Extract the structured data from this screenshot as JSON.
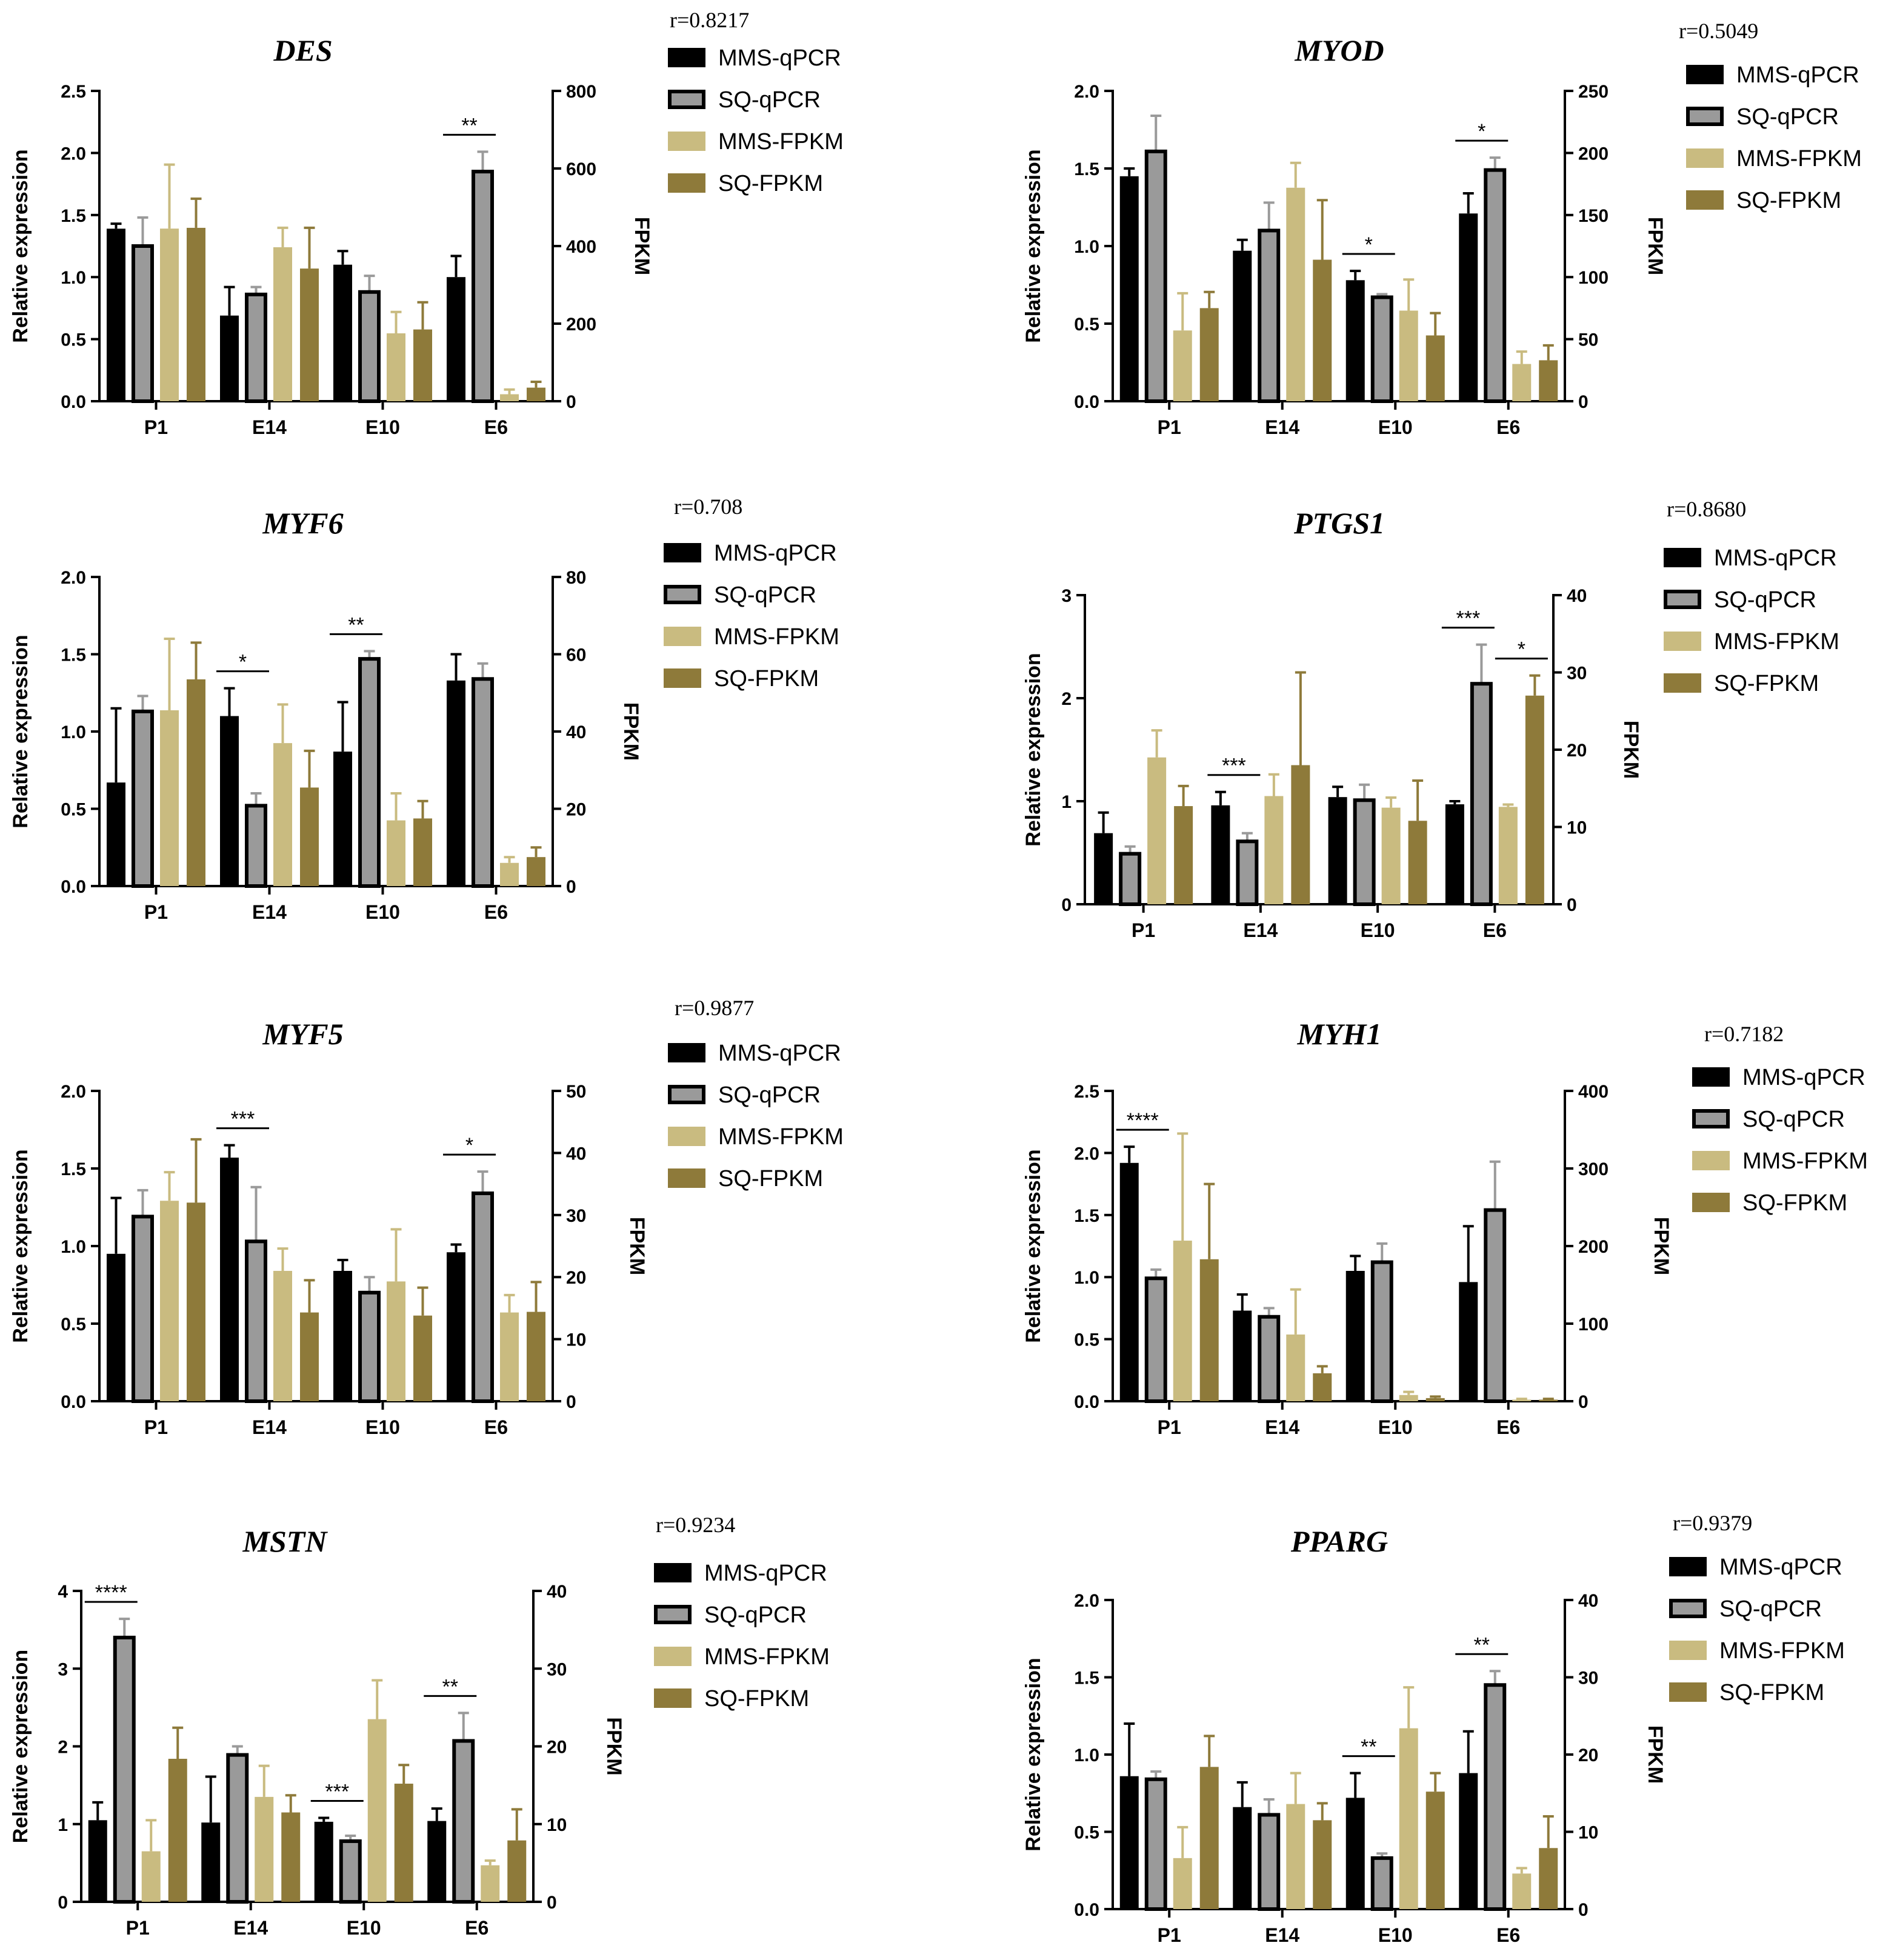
{
  "colors": {
    "MMS-qPCR": "#000000",
    "SQ-qPCR": "#9a9a9a",
    "MMS-FPKM": "#c9bb80",
    "SQ-FPKM": "#8e7a3a"
  },
  "legend": [
    "MMS-qPCR",
    "SQ-qPCR",
    "MMS-FPKM",
    "SQ-FPKM"
  ],
  "chart_data": [
    {
      "type": "bar",
      "title": "DES",
      "r": "r=0.8217",
      "ylabel": "Relative expression",
      "y2label": "FPKM",
      "categories": [
        "P1",
        "E14",
        "E10",
        "E6"
      ],
      "ylim": [
        0,
        2.5
      ],
      "yticks": [
        "0.0",
        "0.5",
        "1.0",
        "1.5",
        "2.0",
        "2.5"
      ],
      "y2lim": [
        0,
        800
      ],
      "y2ticks": [
        "0",
        "200",
        "400",
        "600",
        "800"
      ],
      "series": [
        {
          "name": "MMS-qPCR",
          "axis": "left",
          "values": [
            1.39,
            0.69,
            1.1,
            1.0
          ],
          "errors": [
            0.04,
            0.23,
            0.11,
            0.17
          ]
        },
        {
          "name": "SQ-qPCR",
          "axis": "left",
          "values": [
            1.25,
            0.86,
            0.88,
            1.85
          ],
          "errors": [
            0.23,
            0.06,
            0.13,
            0.16
          ]
        },
        {
          "name": "MMS-FPKM",
          "axis": "right",
          "values": [
            445,
            397,
            175,
            18
          ],
          "errors": [
            165,
            50,
            55,
            12
          ]
        },
        {
          "name": "SQ-FPKM",
          "axis": "right",
          "values": [
            447,
            342,
            185,
            35
          ],
          "errors": [
            75,
            105,
            70,
            15
          ]
        }
      ],
      "significance": [
        {
          "group": 3,
          "from": 0,
          "to": 1,
          "label": "**"
        }
      ]
    },
    {
      "type": "bar",
      "title": "MYOD",
      "r": "r=0.5049",
      "ylabel": "Relative expression",
      "y2label": "FPKM",
      "categories": [
        "P1",
        "E14",
        "E10",
        "E6"
      ],
      "ylim": [
        0,
        2.0
      ],
      "yticks": [
        "0.0",
        "0.5",
        "1.0",
        "1.5",
        "2.0"
      ],
      "y2lim": [
        0,
        250
      ],
      "y2ticks": [
        "0",
        "50",
        "100",
        "150",
        "200",
        "250"
      ],
      "series": [
        {
          "name": "MMS-qPCR",
          "axis": "left",
          "values": [
            1.45,
            0.97,
            0.78,
            1.21
          ],
          "errors": [
            0.05,
            0.07,
            0.06,
            0.13
          ]
        },
        {
          "name": "SQ-qPCR",
          "axis": "left",
          "values": [
            1.61,
            1.1,
            0.67,
            1.49
          ],
          "errors": [
            0.23,
            0.18,
            0.02,
            0.08
          ]
        },
        {
          "name": "MMS-FPKM",
          "axis": "right",
          "values": [
            57,
            172,
            73,
            30
          ],
          "errors": [
            30,
            20,
            25,
            10
          ]
        },
        {
          "name": "SQ-FPKM",
          "axis": "right",
          "values": [
            75,
            114,
            53,
            33
          ],
          "errors": [
            13,
            48,
            18,
            12
          ]
        }
      ],
      "significance": [
        {
          "group": 2,
          "from": 0,
          "to": 1,
          "label": "*"
        },
        {
          "group": 3,
          "from": 0,
          "to": 1,
          "label": "*"
        }
      ]
    },
    {
      "type": "bar",
      "title": "MYF6",
      "r": "r=0.708",
      "ylabel": "Relative expression",
      "y2label": "FPKM",
      "categories": [
        "P1",
        "E14",
        "E10",
        "E6"
      ],
      "ylim": [
        0,
        2.0
      ],
      "yticks": [
        "0.0",
        "0.5",
        "1.0",
        "1.5",
        "2.0"
      ],
      "y2lim": [
        0,
        80
      ],
      "y2ticks": [
        "0",
        "20",
        "40",
        "60",
        "80"
      ],
      "series": [
        {
          "name": "MMS-qPCR",
          "axis": "left",
          "values": [
            0.67,
            1.1,
            0.87,
            1.33
          ],
          "errors": [
            0.48,
            0.18,
            0.32,
            0.17
          ]
        },
        {
          "name": "SQ-qPCR",
          "axis": "left",
          "values": [
            1.13,
            0.52,
            1.47,
            1.34
          ],
          "errors": [
            0.1,
            0.08,
            0.05,
            0.1
          ]
        },
        {
          "name": "MMS-FPKM",
          "axis": "right",
          "values": [
            45.5,
            37,
            17,
            6
          ],
          "errors": [
            18.5,
            10,
            7,
            1.5
          ]
        },
        {
          "name": "SQ-FPKM",
          "axis": "right",
          "values": [
            53.5,
            25.5,
            17.5,
            7.5
          ],
          "errors": [
            9.5,
            9.5,
            4.5,
            2.5
          ]
        }
      ],
      "significance": [
        {
          "group": 1,
          "from": 0,
          "to": 1,
          "label": "*"
        },
        {
          "group": 2,
          "from": 0,
          "to": 1,
          "label": "**"
        }
      ]
    },
    {
      "type": "bar",
      "title": "PTGS1",
      "r": "r=0.8680",
      "ylabel": "Relative expression",
      "y2label": "FPKM",
      "categories": [
        "P1",
        "E14",
        "E10",
        "E6"
      ],
      "ylim": [
        0,
        3
      ],
      "yticks": [
        "0",
        "1",
        "2",
        "3"
      ],
      "y2lim": [
        0,
        40
      ],
      "y2ticks": [
        "0",
        "10",
        "20",
        "30",
        "40"
      ],
      "series": [
        {
          "name": "MMS-qPCR",
          "axis": "left",
          "values": [
            0.69,
            0.96,
            1.04,
            0.97
          ],
          "errors": [
            0.2,
            0.13,
            0.1,
            0.03
          ]
        },
        {
          "name": "SQ-qPCR",
          "axis": "left",
          "values": [
            0.49,
            0.61,
            1.01,
            2.14
          ],
          "errors": [
            0.07,
            0.08,
            0.15,
            0.38
          ]
        },
        {
          "name": "MMS-FPKM",
          "axis": "right",
          "values": [
            19,
            14,
            12.5,
            12.6
          ],
          "errors": [
            3.5,
            2.8,
            1.3,
            0.3
          ]
        },
        {
          "name": "SQ-FPKM",
          "axis": "right",
          "values": [
            12.7,
            18,
            10.8,
            27
          ],
          "errors": [
            2.6,
            12,
            5.2,
            2.6
          ]
        }
      ],
      "significance": [
        {
          "group": 1,
          "from": 0,
          "to": 1,
          "label": "***"
        },
        {
          "group": 3,
          "from": 0,
          "to": 1,
          "label": "***"
        },
        {
          "group": 3,
          "from": 2,
          "to": 3,
          "label": "*"
        }
      ]
    },
    {
      "type": "bar",
      "title": "MYF5",
      "r": "r=0.9877",
      "ylabel": "Relative expression",
      "y2label": "FPKM",
      "categories": [
        "P1",
        "E14",
        "E10",
        "E6"
      ],
      "ylim": [
        0,
        2.0
      ],
      "yticks": [
        "0.0",
        "0.5",
        "1.0",
        "1.5",
        "2.0"
      ],
      "y2lim": [
        0,
        50
      ],
      "y2ticks": [
        "0",
        "10",
        "20",
        "30",
        "40",
        "50"
      ],
      "series": [
        {
          "name": "MMS-qPCR",
          "axis": "left",
          "values": [
            0.95,
            1.57,
            0.84,
            0.96
          ],
          "errors": [
            0.36,
            0.08,
            0.07,
            0.05
          ]
        },
        {
          "name": "SQ-qPCR",
          "axis": "left",
          "values": [
            1.19,
            1.03,
            0.7,
            1.34
          ],
          "errors": [
            0.17,
            0.35,
            0.1,
            0.14
          ]
        },
        {
          "name": "MMS-FPKM",
          "axis": "right",
          "values": [
            32.3,
            21,
            19.3,
            14.3
          ],
          "errors": [
            4.6,
            3.6,
            8.4,
            2.8
          ]
        },
        {
          "name": "SQ-FPKM",
          "axis": "right",
          "values": [
            32,
            14.3,
            13.8,
            14.4
          ],
          "errors": [
            10.2,
            5.2,
            4.5,
            4.8
          ]
        }
      ],
      "significance": [
        {
          "group": 1,
          "from": 0,
          "to": 1,
          "label": "***"
        },
        {
          "group": 3,
          "from": 0,
          "to": 1,
          "label": "*"
        }
      ]
    },
    {
      "type": "bar",
      "title": "MYH1",
      "r": "r=0.7182",
      "ylabel": "Relative expression",
      "y2label": "FPKM",
      "categories": [
        "P1",
        "E14",
        "E10",
        "E6"
      ],
      "ylim": [
        0,
        2.5
      ],
      "yticks": [
        "0.0",
        "0.5",
        "1.0",
        "1.5",
        "2.0",
        "2.5"
      ],
      "y2lim": [
        0,
        400
      ],
      "y2ticks": [
        "0",
        "100",
        "200",
        "300",
        "400"
      ],
      "series": [
        {
          "name": "MMS-qPCR",
          "axis": "left",
          "values": [
            1.92,
            0.73,
            1.05,
            0.96
          ],
          "errors": [
            0.13,
            0.13,
            0.12,
            0.45
          ]
        },
        {
          "name": "SQ-qPCR",
          "axis": "left",
          "values": [
            0.99,
            0.68,
            1.12,
            1.54
          ],
          "errors": [
            0.07,
            0.07,
            0.15,
            0.39
          ]
        },
        {
          "name": "MMS-FPKM",
          "axis": "right",
          "values": [
            207,
            86,
            8,
            2
          ],
          "errors": [
            138,
            58,
            4,
            1
          ]
        },
        {
          "name": "SQ-FPKM",
          "axis": "right",
          "values": [
            183,
            36,
            4,
            2
          ],
          "errors": [
            97,
            9,
            2,
            1
          ]
        }
      ],
      "significance": [
        {
          "group": 0,
          "from": 0,
          "to": 1,
          "label": "****"
        }
      ]
    },
    {
      "type": "bar",
      "title": "MSTN",
      "r": "r=0.9234",
      "ylabel": "Relative expression",
      "y2label": "FPKM",
      "categories": [
        "P1",
        "E14",
        "E10",
        "E6"
      ],
      "ylim": [
        0,
        4
      ],
      "yticks": [
        "0",
        "1",
        "2",
        "3",
        "4"
      ],
      "y2lim": [
        0,
        40
      ],
      "y2ticks": [
        "0",
        "10",
        "20",
        "30",
        "40"
      ],
      "series": [
        {
          "name": "MMS-qPCR",
          "axis": "left",
          "values": [
            1.05,
            1.02,
            1.03,
            1.04
          ],
          "errors": [
            0.23,
            0.59,
            0.05,
            0.16
          ]
        },
        {
          "name": "SQ-qPCR",
          "axis": "left",
          "values": [
            3.4,
            1.89,
            0.78,
            2.07
          ],
          "errors": [
            0.24,
            0.11,
            0.07,
            0.36
          ]
        },
        {
          "name": "MMS-FPKM",
          "axis": "right",
          "values": [
            6.5,
            13.5,
            23.5,
            4.7
          ],
          "errors": [
            4,
            4,
            5,
            0.6
          ]
        },
        {
          "name": "SQ-FPKM",
          "axis": "right",
          "values": [
            18.4,
            11.5,
            15.2,
            7.9
          ],
          "errors": [
            4,
            2.2,
            2.4,
            4
          ]
        }
      ],
      "significance": [
        {
          "group": 0,
          "from": 0,
          "to": 1,
          "label": "****"
        },
        {
          "group": 2,
          "from": 0,
          "to": 1,
          "label": "***"
        },
        {
          "group": 3,
          "from": 0,
          "to": 1,
          "label": "**"
        }
      ]
    },
    {
      "type": "bar",
      "title": "PPARG",
      "r": "r=0.9379",
      "ylabel": "Relative expression",
      "y2label": "FPKM",
      "categories": [
        "P1",
        "E14",
        "E10",
        "E6"
      ],
      "ylim": [
        0,
        2.0
      ],
      "yticks": [
        "0.0",
        "0.5",
        "1.0",
        "1.5",
        "2.0"
      ],
      "y2lim": [
        0,
        40
      ],
      "y2ticks": [
        "0",
        "10",
        "20",
        "30",
        "40"
      ],
      "series": [
        {
          "name": "MMS-qPCR",
          "axis": "left",
          "values": [
            0.86,
            0.66,
            0.72,
            0.88
          ],
          "errors": [
            0.34,
            0.16,
            0.16,
            0.27
          ]
        },
        {
          "name": "SQ-qPCR",
          "axis": "left",
          "values": [
            0.84,
            0.61,
            0.33,
            1.45
          ],
          "errors": [
            0.05,
            0.1,
            0.03,
            0.09
          ]
        },
        {
          "name": "MMS-FPKM",
          "axis": "right",
          "values": [
            6.6,
            13.6,
            23.4,
            4.6
          ],
          "errors": [
            4,
            4,
            5.3,
            0.7
          ]
        },
        {
          "name": "SQ-FPKM",
          "axis": "right",
          "values": [
            18.4,
            11.5,
            15.2,
            7.9
          ],
          "errors": [
            4,
            2.2,
            2.4,
            4.1
          ]
        }
      ],
      "significance": [
        {
          "group": 2,
          "from": 0,
          "to": 1,
          "label": "**"
        },
        {
          "group": 3,
          "from": 0,
          "to": 1,
          "label": "**"
        }
      ]
    }
  ]
}
